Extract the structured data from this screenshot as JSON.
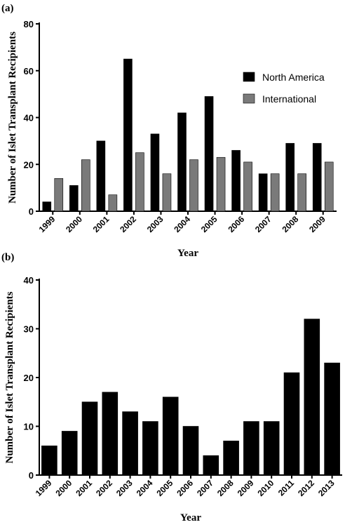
{
  "chart_data": [
    {
      "panel_label": "(a)",
      "type": "bar",
      "categories": [
        "1999",
        "2000",
        "2001",
        "2002",
        "2003",
        "2004",
        "2005",
        "2006",
        "2007",
        "2008",
        "2009"
      ],
      "series": [
        {
          "name": "North America",
          "color": "#000000",
          "values": [
            4,
            11,
            30,
            65,
            33,
            42,
            49,
            26,
            16,
            29,
            29
          ]
        },
        {
          "name": "International",
          "color": "#7a7a7a",
          "values": [
            14,
            22,
            7,
            25,
            16,
            22,
            23,
            21,
            16,
            16,
            21
          ]
        }
      ],
      "xlabel": "Year",
      "ylabel": "Number of Islet Transplant Recipients",
      "ylim": [
        0,
        80
      ],
      "yticks": [
        0,
        20,
        40,
        60,
        80
      ],
      "legend_position": "right",
      "grid": false
    },
    {
      "panel_label": "(b)",
      "type": "bar",
      "categories": [
        "1999",
        "2000",
        "2001",
        "2002",
        "2003",
        "2004",
        "2005",
        "2006",
        "2007",
        "2008",
        "2009",
        "2010",
        "2011",
        "2012",
        "2013"
      ],
      "series": [
        {
          "color": "#000000",
          "values": [
            6,
            9,
            15,
            17,
            13,
            11,
            16,
            10,
            4,
            7,
            11,
            11,
            21,
            32,
            23
          ]
        }
      ],
      "xlabel": "Year",
      "ylabel": "Number of Islet Transplant Recipients",
      "ylim": [
        0,
        40
      ],
      "yticks": [
        0,
        10,
        20,
        30,
        40
      ],
      "grid": false
    }
  ]
}
